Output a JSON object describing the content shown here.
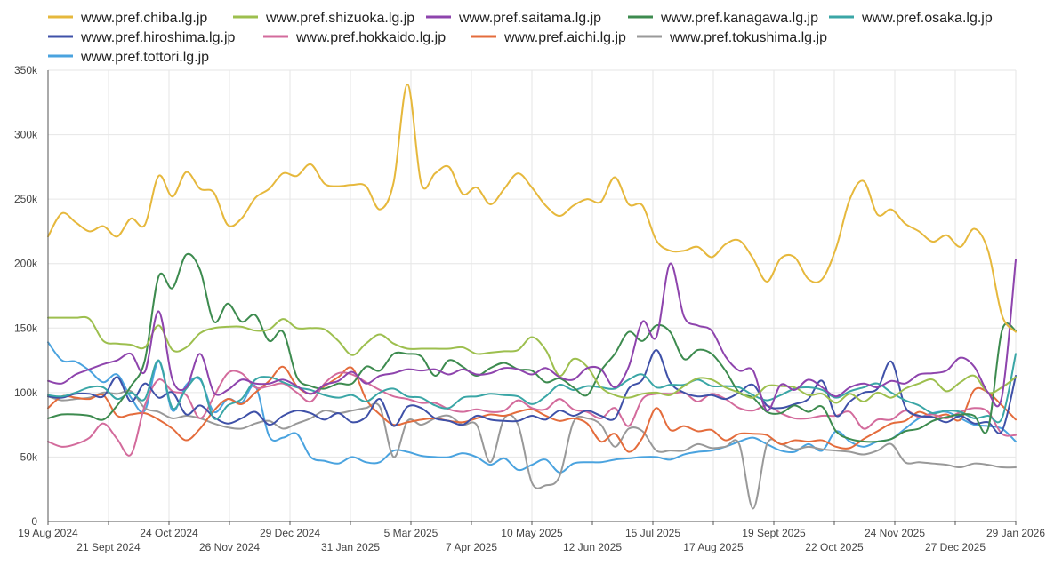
{
  "chart_data": {
    "type": "line",
    "title": "",
    "xlabel": "",
    "ylabel": "",
    "ylim": [
      0,
      350000
    ],
    "y_ticks": [
      0,
      50000,
      100000,
      150000,
      200000,
      250000,
      300000,
      350000
    ],
    "y_tick_labels": [
      "0",
      "50k",
      "100k",
      "150k",
      "200k",
      "250k",
      "300k",
      "350k"
    ],
    "x_tick_labels": [
      "19 Aug 2024",
      "21 Sept 2024",
      "24 Oct 2024",
      "26 Nov 2024",
      "29 Dec 2024",
      "31 Jan 2025",
      "5 Mar 2025",
      "7 Apr 2025",
      "10 May 2025",
      "12 Jun 2025",
      "15 Jul 2025",
      "17 Aug 2025",
      "19 Sept 2025",
      "22 Oct 2025",
      "24 Nov 2025",
      "27 Dec 2025",
      "29 Jan 2026"
    ],
    "legend_position": "top",
    "grid": true,
    "series": [
      {
        "name": "www.pref.chiba.lg.jp",
        "color": "#e6b83c",
        "values": [
          221000,
          239000,
          232000,
          225000,
          229000,
          221000,
          235000,
          230000,
          268000,
          252000,
          271000,
          258000,
          255000,
          230000,
          235000,
          251000,
          258000,
          270000,
          268000,
          277000,
          262000,
          260000,
          261000,
          260000,
          242000,
          263000,
          339000,
          262000,
          270000,
          275000,
          254000,
          259000,
          246000,
          258000,
          270000,
          259000,
          245000,
          237000,
          245000,
          250000,
          248000,
          267000,
          246000,
          245000,
          218000,
          210000,
          210000,
          213000,
          205000,
          215000,
          218000,
          204000,
          186000,
          204000,
          205000,
          188000,
          188000,
          212000,
          250000,
          264000,
          238000,
          242000,
          231000,
          225000,
          217000,
          222000,
          213000,
          227000,
          210000,
          160000,
          147000
        ]
      },
      {
        "name": "www.pref.shizuoka.lg.jp",
        "color": "#9dbf4e",
        "values": [
          158000,
          158000,
          158000,
          157000,
          140000,
          138000,
          137000,
          135000,
          152000,
          133000,
          135000,
          146000,
          150000,
          151000,
          151000,
          148000,
          149000,
          157000,
          150000,
          150000,
          149000,
          140000,
          129000,
          138000,
          145000,
          138000,
          134000,
          134000,
          134000,
          134000,
          135000,
          130000,
          131000,
          132000,
          133000,
          143000,
          133000,
          113000,
          126000,
          120000,
          104000,
          98000,
          96000,
          99000,
          100000,
          98000,
          105000,
          111000,
          110000,
          104000,
          100000,
          96000,
          105000,
          105000,
          104000,
          98000,
          99000,
          92000,
          99000,
          93000,
          100000,
          96000,
          103000,
          107000,
          110000,
          101000,
          108000,
          113000,
          100000,
          104000,
          112000
        ]
      },
      {
        "name": "www.pref.saitama.lg.jp",
        "color": "#8e44ad",
        "values": [
          109000,
          107000,
          114000,
          118000,
          122000,
          125000,
          130000,
          116000,
          163000,
          110000,
          104000,
          130000,
          100000,
          102000,
          110000,
          107000,
          107000,
          110000,
          105000,
          99000,
          106000,
          109000,
          116000,
          107000,
          113000,
          115000,
          118000,
          117000,
          118000,
          114000,
          118000,
          114000,
          115000,
          119000,
          118000,
          114000,
          119000,
          112000,
          110000,
          119000,
          118000,
          104000,
          120000,
          155000,
          143000,
          200000,
          159000,
          152000,
          148000,
          128000,
          117000,
          117000,
          86000,
          106000,
          102000,
          110000,
          104000,
          97000,
          104000,
          107000,
          104000,
          109000,
          107000,
          114000,
          115000,
          117000,
          127000,
          120000,
          100000,
          97000,
          203000
        ]
      },
      {
        "name": "www.pref.kanagawa.lg.jp",
        "color": "#3d8b4f",
        "values": [
          80000,
          83000,
          83000,
          82000,
          79000,
          90000,
          105000,
          125000,
          190000,
          181000,
          207000,
          195000,
          155000,
          169000,
          155000,
          160000,
          140000,
          147000,
          112000,
          105000,
          103000,
          107000,
          107000,
          120000,
          117000,
          130000,
          130000,
          128000,
          113000,
          125000,
          120000,
          113000,
          119000,
          123000,
          118000,
          117000,
          108000,
          111000,
          104000,
          98000,
          117000,
          130000,
          147000,
          140000,
          152000,
          147000,
          126000,
          133000,
          130000,
          117000,
          100000,
          96000,
          85000,
          84000,
          90000,
          85000,
          89000,
          70000,
          64000,
          62000,
          62000,
          64000,
          70000,
          72000,
          78000,
          81000,
          83000,
          82000,
          72000,
          148000,
          148000
        ]
      },
      {
        "name": "www.pref.osaka.lg.jp",
        "color": "#3aa6a6",
        "values": [
          98000,
          97000,
          100000,
          104000,
          104000,
          95000,
          100000,
          95000,
          125000,
          88000,
          103000,
          111000,
          80000,
          90000,
          95000,
          110000,
          112000,
          108000,
          104000,
          102000,
          98000,
          96000,
          98000,
          93000,
          100000,
          103000,
          97000,
          96000,
          90000,
          88000,
          96000,
          97000,
          99000,
          98000,
          97000,
          91000,
          97000,
          106000,
          102000,
          105000,
          104000,
          103000,
          110000,
          114000,
          104000,
          106000,
          106000,
          110000,
          105000,
          105000,
          104000,
          98000,
          94000,
          98000,
          103000,
          104000,
          102000,
          96000,
          101000,
          104000,
          107000,
          100000,
          94000,
          90000,
          84000,
          86000,
          85000,
          80000,
          82000,
          80000,
          130000
        ]
      },
      {
        "name": "www.pref.hiroshima.lg.jp",
        "color": "#3f51a8",
        "values": [
          97000,
          96000,
          99000,
          99000,
          97000,
          112000,
          93000,
          107000,
          96000,
          100000,
          83000,
          90000,
          81000,
          76000,
          80000,
          85000,
          75000,
          82000,
          86000,
          84000,
          79000,
          84000,
          77000,
          81000,
          95000,
          74000,
          89000,
          88000,
          80000,
          78000,
          75000,
          82000,
          79000,
          78000,
          78000,
          82000,
          79000,
          86000,
          82000,
          86000,
          82000,
          80000,
          103000,
          110000,
          133000,
          108000,
          100000,
          97000,
          98000,
          95000,
          100000,
          106000,
          90000,
          88000,
          91000,
          95000,
          109000,
          82000,
          93000,
          100000,
          103000,
          124000,
          89000,
          82000,
          81000,
          77000,
          82000,
          76000,
          77000,
          70000,
          113000
        ]
      },
      {
        "name": "www.pref.hokkaido.lg.jp",
        "color": "#d36b9c",
        "values": [
          62000,
          58000,
          60000,
          65000,
          76000,
          64000,
          52000,
          90000,
          110000,
          101000,
          98000,
          80000,
          97000,
          115000,
          115000,
          104000,
          105000,
          107000,
          100000,
          93000,
          107000,
          115000,
          114000,
          108000,
          102000,
          97000,
          95000,
          92000,
          92000,
          87000,
          85000,
          87000,
          85000,
          86000,
          94000,
          88000,
          87000,
          95000,
          87000,
          85000,
          80000,
          88000,
          74000,
          95000,
          99000,
          99000,
          100000,
          93000,
          99000,
          95000,
          88000,
          86000,
          90000,
          84000,
          80000,
          80000,
          82000,
          82000,
          85000,
          72000,
          79000,
          79000,
          86000,
          81000,
          83000,
          80000,
          85000,
          88000,
          85000,
          68000,
          67000
        ]
      },
      {
        "name": "www.pref.aichi.lg.jp",
        "color": "#e46c3c",
        "values": [
          88000,
          97000,
          96000,
          95000,
          98000,
          82000,
          83000,
          84000,
          79000,
          72000,
          63000,
          72000,
          86000,
          95000,
          91000,
          100000,
          109000,
          120000,
          105000,
          99000,
          105000,
          112000,
          119000,
          95000,
          83000,
          75000,
          77000,
          79000,
          80000,
          78000,
          77000,
          80000,
          83000,
          82000,
          85000,
          87000,
          82000,
          78000,
          80000,
          76000,
          62000,
          68000,
          54000,
          65000,
          88000,
          71000,
          74000,
          70000,
          71000,
          63000,
          68000,
          68000,
          67000,
          60000,
          63000,
          62000,
          63000,
          58000,
          57000,
          64000,
          70000,
          76000,
          78000,
          85000,
          81000,
          83000,
          79000,
          102000,
          100000,
          90000,
          79000
        ]
      },
      {
        "name": "www.pref.tokushima.lg.jp",
        "color": "#999999",
        "values": [
          97000,
          94000,
          95000,
          96000,
          100000,
          99000,
          101000,
          88000,
          85000,
          80000,
          82000,
          80000,
          76000,
          73000,
          72000,
          76000,
          78000,
          72000,
          76000,
          80000,
          86000,
          84000,
          86000,
          88000,
          89000,
          50000,
          78000,
          75000,
          80000,
          82000,
          75000,
          75000,
          46000,
          80000,
          75000,
          30000,
          28000,
          35000,
          77000,
          80000,
          75000,
          58000,
          72000,
          70000,
          55000,
          55000,
          55000,
          60000,
          57000,
          58000,
          60000,
          10000,
          60000,
          60000,
          56000,
          58000,
          56000,
          55000,
          54000,
          52000,
          55000,
          60000,
          46000,
          46000,
          45000,
          44000,
          42000,
          45000,
          44000,
          42000,
          42000
        ]
      },
      {
        "name": "www.pref.tottori.lg.jp",
        "color": "#4aa3df",
        "values": [
          139000,
          125000,
          124000,
          117000,
          108000,
          114000,
          96000,
          86000,
          124000,
          86000,
          106000,
          110000,
          85000,
          95000,
          92000,
          105000,
          66000,
          65000,
          68000,
          50000,
          47000,
          45000,
          50000,
          46000,
          46000,
          55000,
          54000,
          51000,
          50000,
          50000,
          53000,
          50000,
          44000,
          49000,
          40000,
          44000,
          48000,
          38000,
          45000,
          46000,
          46000,
          48000,
          49000,
          50000,
          50000,
          48000,
          52000,
          54000,
          55000,
          58000,
          62000,
          65000,
          60000,
          55000,
          54000,
          60000,
          55000,
          70000,
          62000,
          58000,
          62000,
          64000,
          72000,
          80000,
          84000,
          85000,
          80000,
          75000,
          74000,
          72000,
          62000
        ]
      }
    ]
  }
}
